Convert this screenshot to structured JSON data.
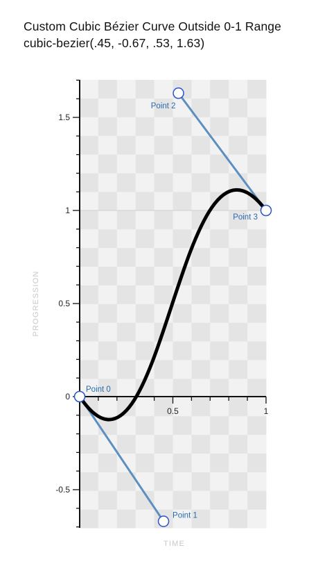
{
  "header": {
    "title": "Custom Cubic Bézier Curve Outside 0-1 Range",
    "subtitle": "cubic-bezier(.45, -0.67, .53, 1.63)"
  },
  "axes": {
    "x_title": "TIME",
    "y_title": "PROGRESSION",
    "x_ticks": [
      {
        "value": 0.5,
        "label": "0.5"
      },
      {
        "value": 1,
        "label": "1"
      }
    ],
    "y_ticks": [
      {
        "value": 1.5,
        "label": "1.5"
      },
      {
        "value": 1,
        "label": "1"
      },
      {
        "value": 0.5,
        "label": "0.5"
      },
      {
        "value": 0,
        "label": "0"
      },
      {
        "value": -0.5,
        "label": "-0.5"
      }
    ],
    "x_range": [
      0,
      1
    ],
    "y_range": [
      -0.7,
      1.7
    ]
  },
  "bezier": {
    "points": [
      {
        "name": "Point 0",
        "x": 0,
        "y": 0
      },
      {
        "name": "Point 1",
        "x": 0.45,
        "y": -0.67
      },
      {
        "name": "Point 2",
        "x": 0.53,
        "y": 1.63
      },
      {
        "name": "Point 3",
        "x": 1,
        "y": 1
      }
    ]
  },
  "colors": {
    "curve": "#000000",
    "handle": "#5b8fc0",
    "point_stroke": "#2a52c9",
    "point_fill": "#ffffff",
    "point_label": "#2a6ab0",
    "checker_light": "#f2f2f2",
    "checker_dark": "#e4e4e4",
    "axis": "#111111"
  }
}
